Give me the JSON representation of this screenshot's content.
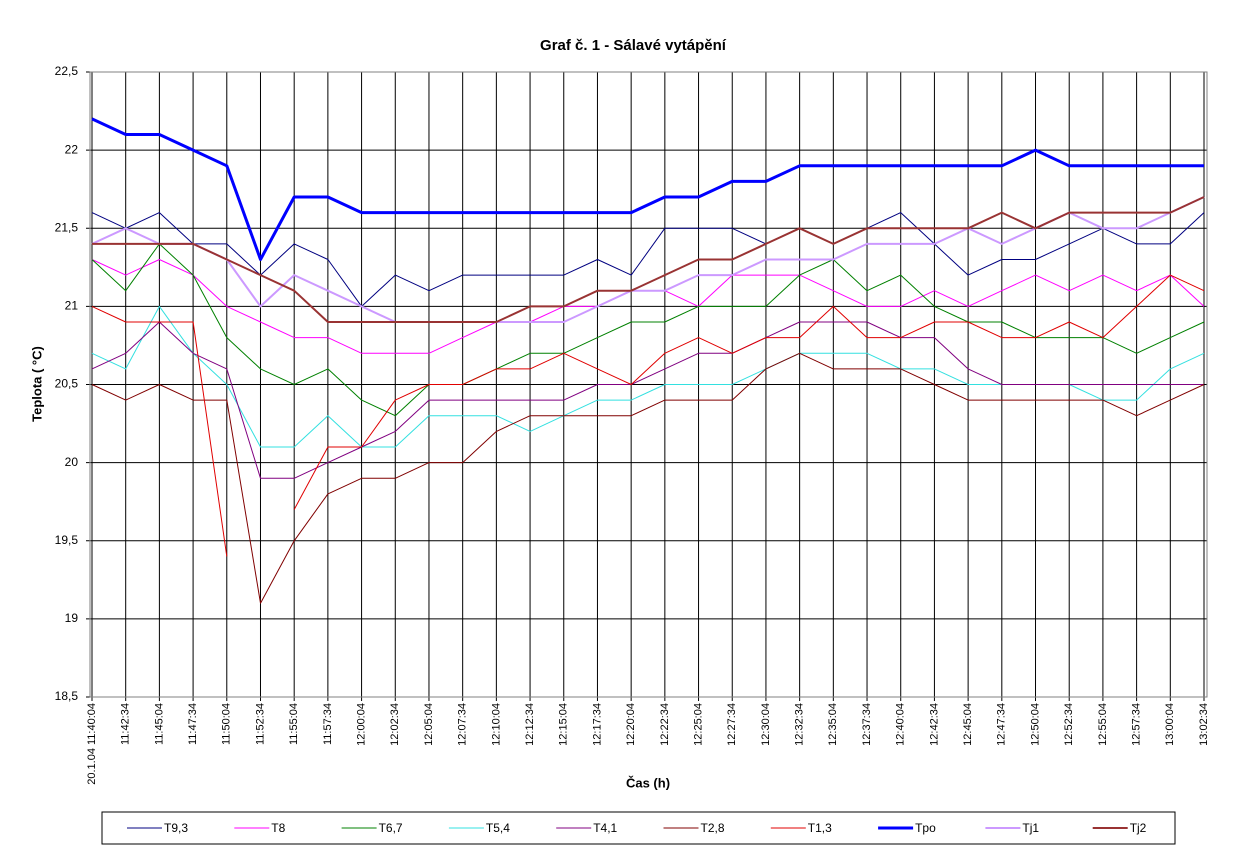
{
  "chart_data": {
    "type": "line",
    "title": "Graf č. 1 - Sálavé vytápění",
    "xlabel": "Čas (h)",
    "ylabel": "Teplota ( °C)",
    "categories": [
      "20.1.04 11:40:04",
      "11:42:34",
      "11:45:04",
      "11:47:34",
      "11:50:04",
      "11:52:34",
      "11:55:04",
      "11:57:34",
      "12:00:04",
      "12:02:34",
      "12:05:04",
      "12:07:34",
      "12:10:04",
      "12:12:34",
      "12:15:04",
      "12:17:34",
      "12:20:04",
      "12:22:34",
      "12:25:04",
      "12:27:34",
      "12:30:04",
      "12:32:34",
      "12:35:04",
      "12:37:34",
      "12:40:04",
      "12:42:34",
      "12:45:04",
      "12:47:34",
      "12:50:04",
      "12:52:34",
      "12:55:04",
      "12:57:34",
      "13:00:04",
      "13:02:34"
    ],
    "ylim": [
      18.5,
      22.5
    ],
    "yticks": [
      {
        "value": 18.5,
        "label": "18,5"
      },
      19,
      {
        "value": 19.5,
        "label": "19,5"
      },
      20,
      {
        "value": 20.5,
        "label": "20,5"
      },
      21,
      {
        "value": 21.5,
        "label": "21,5"
      },
      22,
      {
        "value": 22.5,
        "label": "22,5"
      }
    ],
    "grid": true,
    "legend": "bottom",
    "series": [
      {
        "name": "T9,3",
        "color": "#000080",
        "values": [
          21.6,
          21.5,
          21.6,
          21.4,
          21.4,
          21.2,
          21.4,
          21.3,
          21.0,
          21.2,
          21.1,
          21.2,
          21.2,
          21.2,
          21.2,
          21.3,
          21.2,
          21.5,
          21.5,
          21.5,
          21.4,
          21.5,
          21.4,
          21.5,
          21.6,
          21.4,
          21.2,
          21.3,
          21.3,
          21.4,
          21.5,
          21.4,
          21.4,
          21.6
        ]
      },
      {
        "name": "T8",
        "color": "#ff00ff",
        "values": [
          21.3,
          21.2,
          21.3,
          21.2,
          21.0,
          20.9,
          20.8,
          20.8,
          20.7,
          20.7,
          20.7,
          20.8,
          20.9,
          20.9,
          21.0,
          21.0,
          21.1,
          21.1,
          21.0,
          21.2,
          21.2,
          21.2,
          21.1,
          21.0,
          21.0,
          21.1,
          21.0,
          21.1,
          21.2,
          21.1,
          21.2,
          21.1,
          21.2,
          21.0
        ]
      },
      {
        "name": "T6,7",
        "color": "#008000",
        "values": [
          21.3,
          21.1,
          21.4,
          21.2,
          20.8,
          20.6,
          20.5,
          20.6,
          20.4,
          20.3,
          20.5,
          20.5,
          20.6,
          20.7,
          20.7,
          20.8,
          20.9,
          20.9,
          21.0,
          21.0,
          21.0,
          21.2,
          21.3,
          21.1,
          21.2,
          21.0,
          20.9,
          20.9,
          20.8,
          20.8,
          20.8,
          20.7,
          20.8,
          20.9
        ]
      },
      {
        "name": "T5,4",
        "color": "#33e0e0",
        "values": [
          20.7,
          20.6,
          21.0,
          20.7,
          20.5,
          20.1,
          20.1,
          20.3,
          20.1,
          20.1,
          20.3,
          20.3,
          20.3,
          20.2,
          20.3,
          20.4,
          20.4,
          20.5,
          20.5,
          20.5,
          20.6,
          20.7,
          20.7,
          20.7,
          20.6,
          20.6,
          20.5,
          20.5,
          20.5,
          20.5,
          20.4,
          20.4,
          20.6,
          20.7
        ]
      },
      {
        "name": "T4,1",
        "color": "#800080",
        "values": [
          20.6,
          20.7,
          20.9,
          20.7,
          20.6,
          19.9,
          19.9,
          20.0,
          20.1,
          20.2,
          20.4,
          20.4,
          20.4,
          20.4,
          20.4,
          20.5,
          20.5,
          20.6,
          20.7,
          20.7,
          20.8,
          20.9,
          20.9,
          20.9,
          20.8,
          20.8,
          20.6,
          20.5,
          20.5,
          20.5,
          20.5,
          20.5,
          20.5,
          20.5
        ]
      },
      {
        "name": "T2,8",
        "color": "#800000",
        "values": [
          20.5,
          20.4,
          20.5,
          20.4,
          20.4,
          19.1,
          19.5,
          19.8,
          19.9,
          19.9,
          20.0,
          20.0,
          20.2,
          20.3,
          20.3,
          20.3,
          20.3,
          20.4,
          20.4,
          20.4,
          20.6,
          20.7,
          20.6,
          20.6,
          20.6,
          20.5,
          20.4,
          20.4,
          20.4,
          20.4,
          20.4,
          20.3,
          20.4,
          20.5
        ]
      },
      {
        "name": "T1,3",
        "color": "#e00000",
        "values": [
          21.0,
          20.9,
          20.9,
          20.9,
          19.4,
          null,
          19.7,
          20.1,
          20.1,
          20.4,
          20.5,
          20.5,
          20.6,
          20.6,
          20.7,
          20.6,
          20.5,
          20.7,
          20.8,
          20.7,
          20.8,
          20.8,
          21.0,
          20.8,
          20.8,
          20.9,
          20.9,
          20.8,
          20.8,
          20.9,
          20.8,
          21.0,
          21.2,
          21.1
        ]
      },
      {
        "name": "Tpo",
        "color": "#0000ff",
        "values": [
          22.2,
          22.1,
          22.1,
          22.0,
          21.9,
          21.3,
          21.7,
          21.7,
          21.6,
          21.6,
          21.6,
          21.6,
          21.6,
          21.6,
          21.6,
          21.6,
          21.6,
          21.7,
          21.7,
          21.8,
          21.8,
          21.9,
          21.9,
          21.9,
          21.9,
          21.9,
          21.9,
          21.9,
          22.0,
          21.9,
          21.9,
          21.9,
          21.9,
          21.9
        ]
      },
      {
        "name": "Tj1",
        "color": "#cc99ff",
        "values": [
          21.4,
          21.5,
          21.4,
          21.4,
          21.3,
          21.0,
          21.2,
          21.1,
          21.0,
          20.9,
          20.9,
          20.9,
          20.9,
          20.9,
          20.9,
          21.0,
          21.1,
          21.1,
          21.2,
          21.2,
          21.3,
          21.3,
          21.3,
          21.4,
          21.4,
          21.4,
          21.5,
          21.4,
          21.5,
          21.6,
          21.5,
          21.5,
          21.6,
          21.7
        ]
      },
      {
        "name": "Tj2",
        "color": "#993333",
        "values": [
          21.4,
          21.4,
          21.4,
          21.4,
          21.3,
          21.2,
          21.1,
          20.9,
          20.9,
          20.9,
          20.9,
          20.9,
          20.9,
          21.0,
          21.0,
          21.1,
          21.1,
          21.2,
          21.3,
          21.3,
          21.4,
          21.5,
          21.4,
          21.5,
          21.5,
          21.5,
          21.5,
          21.6,
          21.5,
          21.6,
          21.6,
          21.6,
          21.6,
          21.7
        ]
      }
    ]
  }
}
